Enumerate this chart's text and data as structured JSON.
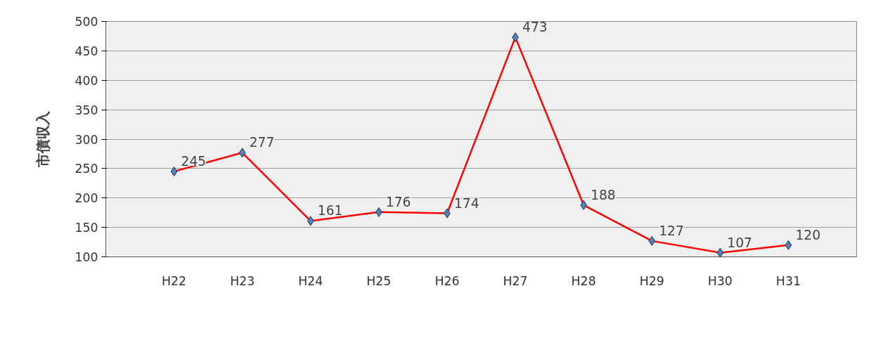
{
  "chart_data": {
    "type": "line",
    "ylabel": "市債収入",
    "categories": [
      "H22",
      "H23",
      "H24",
      "H25",
      "H26",
      "H27",
      "H28",
      "H29",
      "H30",
      "H31"
    ],
    "series": [
      {
        "color": "#ff0000",
        "values": [
          245,
          277,
          161,
          176,
          174,
          473,
          188,
          127,
          107,
          120
        ]
      }
    ],
    "ylim": [
      100,
      500
    ],
    "yticks": [
      100,
      150,
      200,
      250,
      300,
      350,
      400,
      450,
      500
    ],
    "grid": "y",
    "marker": "diamond",
    "line_style": "solid",
    "data_labels": true
  }
}
